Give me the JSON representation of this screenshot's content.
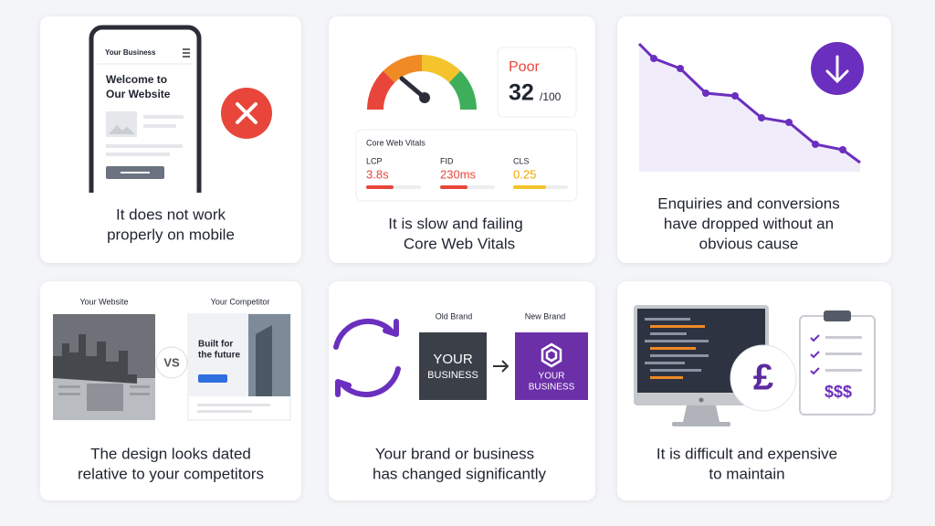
{
  "cards": [
    {
      "phone_header": "Your Business",
      "phone_heading": [
        "Welcome to",
        "Our Website"
      ],
      "caption": [
        "It does not work",
        "properly on mobile"
      ]
    },
    {
      "status": "Poor",
      "score": "32",
      "score_max": "/100",
      "panel_title": "Core Web Vitals",
      "metrics": [
        {
          "name": "LCP",
          "value": "3.8s"
        },
        {
          "name": "FID",
          "value": "230ms"
        },
        {
          "name": "CLS",
          "value": "0.25"
        }
      ],
      "caption": [
        "It is slow and failing",
        "Core Web Vitals"
      ]
    },
    {
      "caption": [
        "Enquiries and conversions",
        "have dropped without an",
        "obvious cause"
      ]
    },
    {
      "left_label": "Your Website",
      "right_label": "Your Competitor",
      "versus": "VS",
      "competitor_heading": [
        "Built for",
        "the future"
      ],
      "caption": [
        "The design looks dated",
        "relative to your competitors"
      ]
    },
    {
      "old_label": "Old Brand",
      "new_label": "New Brand",
      "old_name": [
        "YOUR",
        "BUSINESS"
      ],
      "new_name": [
        "YOUR",
        "BUSINESS"
      ],
      "caption": [
        "Your brand or business",
        "has changed significantly"
      ]
    },
    {
      "currency": "£",
      "cost": "$$$",
      "caption": [
        "It is difficult and expensive",
        "to maintain"
      ]
    }
  ]
}
